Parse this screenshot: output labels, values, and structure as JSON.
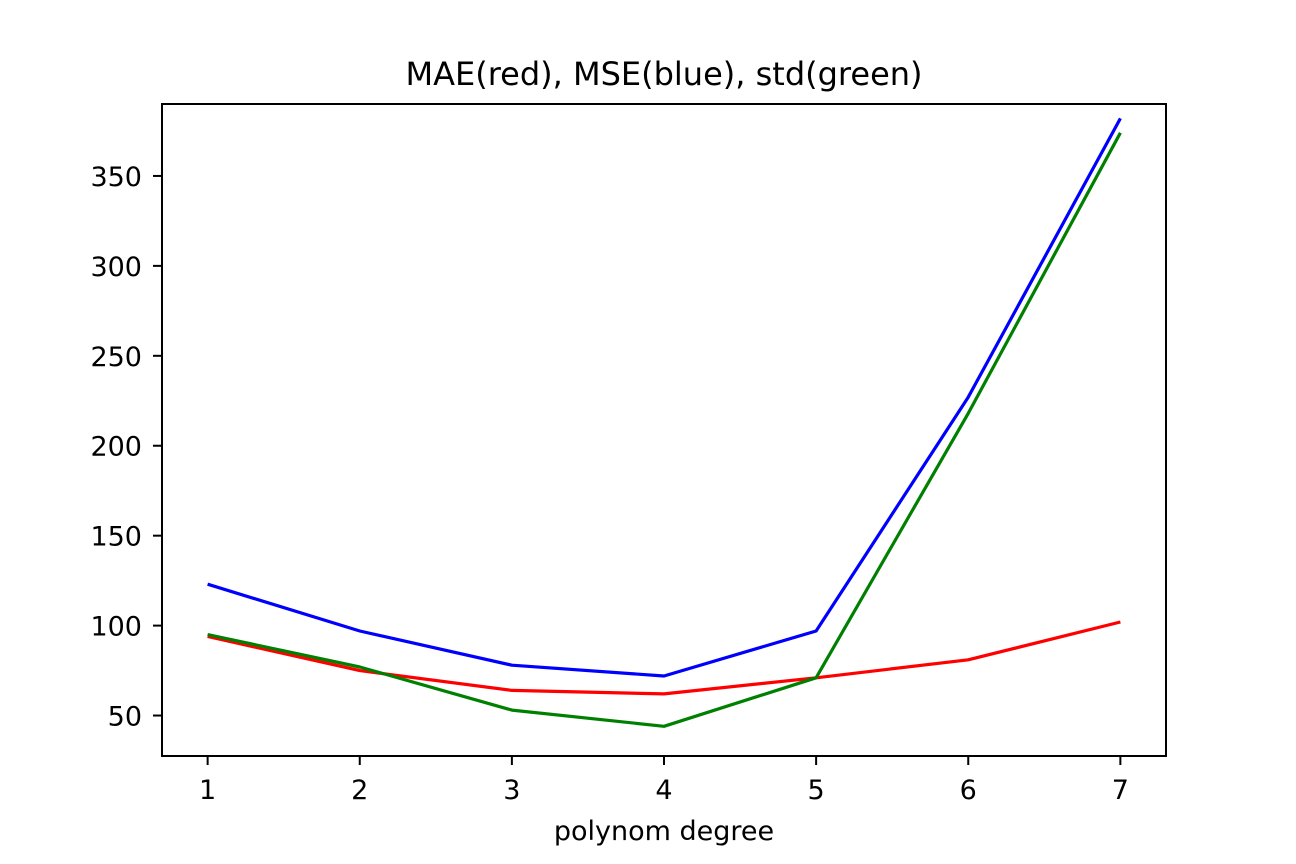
{
  "chart_data": {
    "type": "line",
    "title": "MAE(red), MSE(blue), std(green)",
    "xlabel": "polynom degree",
    "ylabel": "",
    "x": [
      1,
      2,
      3,
      4,
      5,
      6,
      7
    ],
    "xticks": [
      "1",
      "2",
      "3",
      "4",
      "5",
      "6",
      "7"
    ],
    "yticks": [
      "50",
      "100",
      "150",
      "200",
      "250",
      "300",
      "350"
    ],
    "xlim": [
      0.7,
      7.3
    ],
    "ylim": [
      27.5,
      390
    ],
    "grid": false,
    "series": [
      {
        "color": "#ff0000",
        "values": [
          94,
          75,
          64,
          62,
          71,
          81,
          102
        ]
      },
      {
        "color": "#0000ff",
        "values": [
          123,
          97,
          78,
          72,
          97,
          227,
          382
        ]
      },
      {
        "color": "#008000",
        "values": [
          95,
          77,
          53,
          44,
          71,
          218,
          374
        ]
      }
    ]
  }
}
